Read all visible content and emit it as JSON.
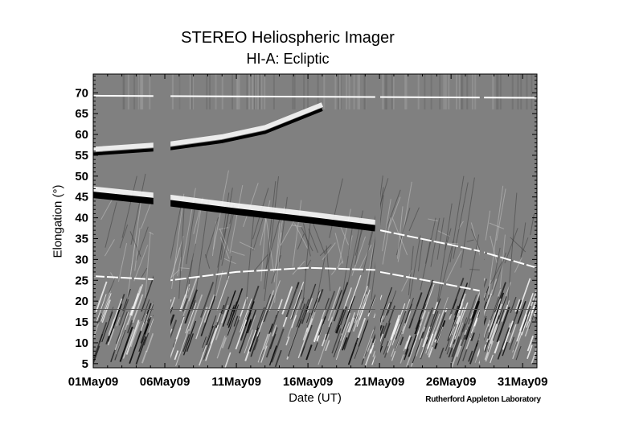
{
  "chart_data": {
    "type": "heatmap",
    "title": "STEREO Heliospheric Imager",
    "subtitle": "HI-A: Ecliptic",
    "xlabel": "Date (UT)",
    "ylabel": "Elongation (°)",
    "credit": "Rutherford Appleton Laboratory",
    "xlim": [
      "01May09",
      "01Jun09"
    ],
    "ylim": [
      4,
      74.5
    ],
    "x_tick_labels": [
      "01May09",
      "06May09",
      "11May09",
      "16May09",
      "21May09",
      "26May09",
      "31May09"
    ],
    "y_tick_labels": [
      "5",
      "10",
      "15",
      "20",
      "25",
      "30",
      "35",
      "40",
      "45",
      "50",
      "55",
      "60",
      "65",
      "70"
    ],
    "colormap": "grayscale",
    "background_color": "#808080",
    "data_gaps_days_since_01May09": [
      [
        4.2,
        5.4
      ],
      [
        19.7,
        20.05
      ],
      [
        27.0,
        27.3
      ]
    ],
    "inner_region_upper_elongation": 18,
    "tracks": [
      {
        "shade": "white",
        "points": [
          [
            0,
            69.3
          ],
          [
            31,
            68.8
          ]
        ]
      },
      {
        "shade": "black",
        "points": [
          [
            0,
            55.3
          ],
          [
            4.2,
            56.3
          ],
          [
            5.4,
            56.6
          ],
          [
            9,
            58.3
          ],
          [
            12,
            60.5
          ],
          [
            16,
            66
          ]
        ]
      },
      {
        "shade": "black",
        "points": [
          [
            0,
            45.5
          ],
          [
            4.2,
            44
          ],
          [
            5.4,
            43.5
          ],
          [
            10,
            41.5
          ],
          [
            15,
            39.5
          ],
          [
            19.7,
            37.5
          ]
        ]
      },
      {
        "shade": "white",
        "points": [
          [
            20.05,
            37
          ],
          [
            25,
            33.5
          ],
          [
            27,
            32
          ],
          [
            31,
            28
          ]
        ]
      },
      {
        "shade": "white",
        "points": [
          [
            0,
            26
          ],
          [
            5.4,
            25
          ],
          [
            10,
            27
          ],
          [
            15,
            28
          ],
          [
            19.7,
            27.5
          ],
          [
            20.05,
            27
          ],
          [
            24,
            24.5
          ],
          [
            27,
            22.5
          ]
        ]
      }
    ]
  }
}
